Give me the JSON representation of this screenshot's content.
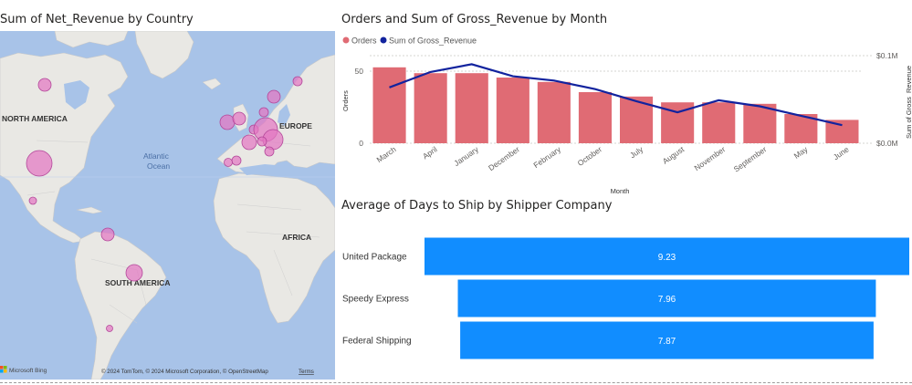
{
  "map": {
    "title": "Sum of Net_Revenue by Country",
    "region_labels": {
      "north_america": "NORTH AMERICA",
      "europe": "EUROPE",
      "atlantic_line1": "Atlantic",
      "atlantic_line2": "Ocean",
      "africa": "AFRICA",
      "south_america": "SOUTH AMERICA"
    },
    "bing_logo": "Microsoft Bing",
    "attribution": "© 2024 TomTom, © 2024 Microsoft Corporation, © OpenStreetMap",
    "terms": "Terms",
    "bubble_color": "#e377c2"
  },
  "combo": {
    "title": "Orders and Sum of Gross_Revenue by Month",
    "legend": {
      "orders": "Orders",
      "gross": "Sum of Gross_Revenue"
    },
    "xlabel": "Month",
    "ylabel_left": "Orders",
    "ylabel_right": "Sum of Gross_Revenue",
    "left_ticks": [
      "0",
      "50"
    ],
    "right_ticks": [
      "$0.0M",
      "$0.1M"
    ],
    "bar_color": "#e06b74",
    "line_color": "#12239e"
  },
  "shipper": {
    "title": "Average of Days to Ship by Shipper Company",
    "bar_color": "#118dff"
  },
  "chart_data": [
    {
      "type": "bar",
      "title": "Orders and Sum of Gross_Revenue by Month",
      "xlabel": "Month",
      "ylabel": "Orders",
      "y2label": "Sum of Gross_Revenue",
      "categories": [
        "March",
        "April",
        "January",
        "December",
        "February",
        "October",
        "July",
        "August",
        "November",
        "September",
        "May",
        "June"
      ],
      "series": [
        {
          "name": "Orders",
          "type": "bar",
          "axis": "left",
          "values": [
            52,
            48,
            48,
            45,
            42,
            35,
            32,
            28,
            28,
            27,
            20,
            16
          ]
        },
        {
          "name": "Sum of Gross_Revenue",
          "type": "line",
          "axis": "right",
          "values": [
            0.065,
            0.083,
            0.092,
            0.078,
            0.073,
            0.063,
            0.049,
            0.036,
            0.05,
            0.043,
            0.032,
            0.021
          ]
        }
      ],
      "ylim": [
        0,
        60
      ],
      "y2lim": [
        0,
        0.102
      ],
      "legend": "top-left"
    },
    {
      "type": "bar",
      "orientation": "horizontal",
      "title": "Average of Days to Ship by Shipper Company",
      "categories": [
        "United Package",
        "Speedy Express",
        "Federal Shipping"
      ],
      "values": [
        9.23,
        7.96,
        7.87
      ],
      "data_labels": [
        "9.23",
        "7.96",
        "7.87"
      ]
    }
  ]
}
